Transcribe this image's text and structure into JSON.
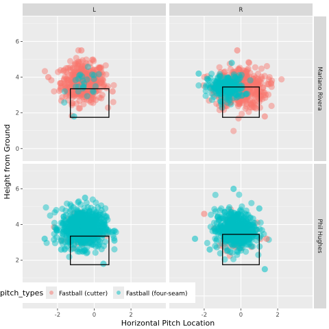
{
  "chart_data": {
    "type": "scatter",
    "xlabel": "Horizontal Pitch Location",
    "ylabel": "Height from Ground",
    "xlim": [
      -3.9,
      3.9
    ],
    "ylim": [
      -0.7,
      7.4
    ],
    "x_ticks": [
      -2,
      0,
      2
    ],
    "y_ticks": [
      0,
      2,
      4,
      6
    ],
    "grid": true,
    "facet_columns": [
      "L",
      "R"
    ],
    "facet_rows": [
      "Mariano Rivera",
      "Phil Hughes"
    ],
    "legend": {
      "title": "pitch_types",
      "position": "bottom-left",
      "entries": [
        {
          "label": "Fastball (cutter)",
          "color": "#F8766D"
        },
        {
          "label": "Fastball (four-seam)",
          "color": "#00BFC4"
        }
      ]
    },
    "strike_zones": {
      "L": {
        "x": [
          -1.3,
          0.8
        ],
        "y": [
          1.75,
          3.35
        ]
      },
      "R": {
        "x": [
          -1.0,
          1.0
        ],
        "y": [
          1.75,
          3.45
        ]
      }
    },
    "panels": [
      {
        "row": "Mariano Rivera",
        "col": "L",
        "clusters": [
          {
            "series": "Fastball (cutter)",
            "center": [
              -0.6,
              3.7
            ],
            "spread": [
              0.6,
              0.55
            ],
            "count": 420
          },
          {
            "series": "Fastball (four-seam)",
            "center": [
              -0.5,
              3.6
            ],
            "spread": [
              0.5,
              0.4
            ],
            "count": 25
          }
        ],
        "outliers": [
          {
            "series": "Fastball (cutter)",
            "x": 1.0,
            "y": 3.2
          },
          {
            "series": "Fastball (cutter)",
            "x": -2.5,
            "y": 4.0
          },
          {
            "series": "Fastball (cutter)",
            "x": -0.7,
            "y": 5.5
          },
          {
            "series": "Fastball (four-seam)",
            "x": -1.1,
            "y": 1.8
          }
        ]
      },
      {
        "row": "Mariano Rivera",
        "col": "R",
        "clusters": [
          {
            "series": "Fastball (cutter)",
            "center": [
              0.0,
              3.4
            ],
            "spread": [
              0.7,
              0.6
            ],
            "count": 380
          },
          {
            "series": "Fastball (four-seam)",
            "center": [
              -0.8,
              3.4
            ],
            "spread": [
              0.5,
              0.35
            ],
            "count": 220
          }
        ],
        "outliers": [
          {
            "series": "Fastball (cutter)",
            "x": -0.2,
            "y": 5.5
          },
          {
            "series": "Fastball (cutter)",
            "x": 1.5,
            "y": 3.6
          },
          {
            "series": "Fastball (cutter)",
            "x": 1.3,
            "y": 1.8
          },
          {
            "series": "Fastball (four-seam)",
            "x": -2.3,
            "y": 4.2
          },
          {
            "series": "Fastball (four-seam)",
            "x": -0.5,
            "y": 4.8
          }
        ]
      },
      {
        "row": "Phil Hughes",
        "col": "L",
        "clusters": [
          {
            "series": "Fastball (cutter)",
            "center": [
              -0.5,
              3.8
            ],
            "spread": [
              0.45,
              0.4
            ],
            "count": 60
          },
          {
            "series": "Fastball (four-seam)",
            "center": [
              -0.6,
              3.8
            ],
            "spread": [
              0.6,
              0.55
            ],
            "count": 700
          }
        ],
        "outliers": [
          {
            "series": "Fastball (four-seam)",
            "x": -2.7,
            "y": 3.2
          },
          {
            "series": "Fastball (four-seam)",
            "x": 1.1,
            "y": 3.1
          },
          {
            "series": "Fastball (four-seam)",
            "x": 0.5,
            "y": 1.8
          },
          {
            "series": "Fastball (four-seam)",
            "x": -1.8,
            "y": 2.6
          },
          {
            "series": "Fastball (four-seam)",
            "x": -0.5,
            "y": 5.5
          }
        ]
      },
      {
        "row": "Phil Hughes",
        "col": "R",
        "clusters": [
          {
            "series": "Fastball (cutter)",
            "center": [
              -0.3,
              3.6
            ],
            "spread": [
              0.5,
              0.5
            ],
            "count": 80
          },
          {
            "series": "Fastball (four-seam)",
            "center": [
              -0.3,
              3.7
            ],
            "spread": [
              0.55,
              0.55
            ],
            "count": 480
          }
        ],
        "outliers": [
          {
            "series": "Fastball (four-seam)",
            "x": -2.5,
            "y": 3.2
          },
          {
            "series": "Fastball (four-seam)",
            "x": -0.4,
            "y": 6.0
          },
          {
            "series": "Fastball (four-seam)",
            "x": 1.3,
            "y": 1.5
          },
          {
            "series": "Fastball (four-seam)",
            "x": 1.0,
            "y": 4.9
          },
          {
            "series": "Fastball (four-seam)",
            "x": -1.7,
            "y": 2.6
          },
          {
            "series": "Fastball (cutter)",
            "x": 1.4,
            "y": 3.2
          },
          {
            "series": "Fastball (cutter)",
            "x": -2.0,
            "y": 4.6
          }
        ]
      }
    ]
  }
}
